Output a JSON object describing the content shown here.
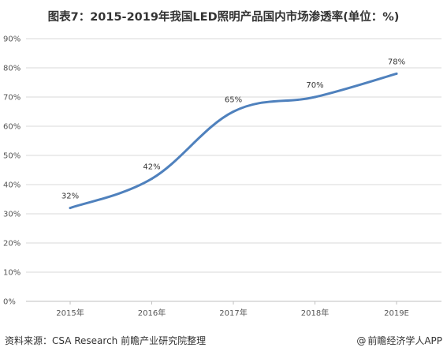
{
  "title": "图表7：2015-2019年我国LED照明产品国内市场渗透率(单位：%)",
  "footer": {
    "source": "资料来源：CSA Research 前瞻产业研究院整理",
    "brand": "前瞻经济学人APP",
    "brand_icon": "at-sign-icon"
  },
  "colors": {
    "line": "#4F81BD",
    "grid": "#D9D9D9",
    "axis": "#BFBFBF"
  },
  "chart_data": {
    "type": "line",
    "title": "图表7：2015-2019年我国LED照明产品国内市场渗透率(单位：%)",
    "categories": [
      "2015年",
      "2016年",
      "2017年",
      "2018年",
      "2019E"
    ],
    "series": [
      {
        "values": [
          32,
          42,
          65,
          70,
          78
        ],
        "data_labels": [
          "32%",
          "42%",
          "65%",
          "70%",
          "78%"
        ]
      }
    ],
    "y_ticks": [
      "0%",
      "10%",
      "20%",
      "30%",
      "40%",
      "50%",
      "60%",
      "70%",
      "80%",
      "90%"
    ],
    "ylim": [
      0,
      90
    ],
    "y_step": 10,
    "xlabel": "",
    "ylabel": "",
    "grid": "horizontal",
    "legend": "none",
    "smooth": true
  }
}
